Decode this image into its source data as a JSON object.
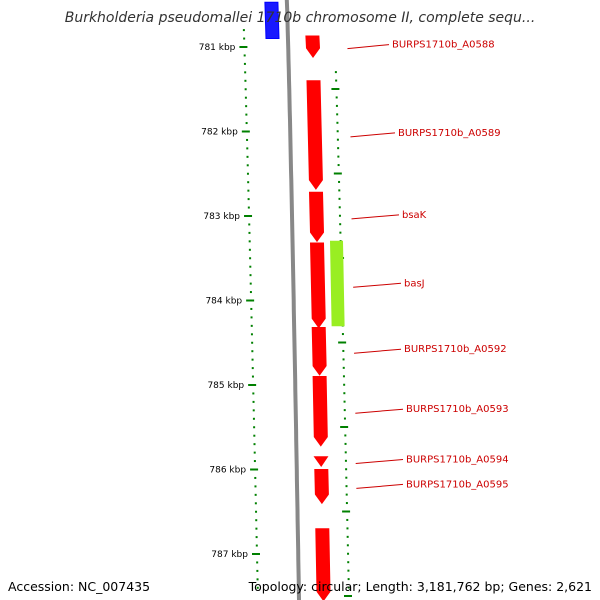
{
  "title": "Burkholderia pseudomallei 1710b chromosome II, complete sequ...",
  "footer": {
    "accession": "Accession: NC_007435",
    "stats": "Topology: circular; Length: 3,181,762 bp; Genes: 2,621"
  },
  "colors": {
    "forward_cds": "#ff0000",
    "reverse_cds": "#99ee22",
    "other_feature": "#0000ff",
    "backbone": "#888888",
    "ticks": "#008000",
    "label": "#cc0000"
  },
  "ticks": [
    {
      "kbp": 781,
      "label": "781 kbp"
    },
    {
      "kbp": 782,
      "label": "782 kbp"
    },
    {
      "kbp": 783,
      "label": "783 kbp"
    },
    {
      "kbp": 784,
      "label": "784 kbp"
    },
    {
      "kbp": 785,
      "label": "785 kbp"
    },
    {
      "kbp": 786,
      "label": "786 kbp"
    },
    {
      "kbp": 787,
      "label": "787 kbp"
    }
  ],
  "features": [
    {
      "type": "other",
      "start": 780.47,
      "end": 780.9
    },
    {
      "type": "forward",
      "start": 780.87,
      "end": 781.12,
      "label": "BURPS1710b_A0588"
    },
    {
      "type": "forward",
      "start": 781.4,
      "end": 782.68,
      "label": "BURPS1710b_A0589"
    },
    {
      "type": "forward",
      "start": 782.72,
      "end": 783.3,
      "label": "bsaK"
    },
    {
      "type": "forward",
      "start": 783.32,
      "end": 784.32,
      "label": "basJ"
    },
    {
      "type": "reverse",
      "start": 783.3,
      "end": 784.3
    },
    {
      "type": "forward",
      "start": 784.32,
      "end": 784.88,
      "label": "BURPS1710b_A0592"
    },
    {
      "type": "forward",
      "start": 784.9,
      "end": 785.72,
      "label": "BURPS1710b_A0593"
    },
    {
      "type": "forward",
      "start": 785.85,
      "end": 785.96,
      "label": "BURPS1710b_A0594"
    },
    {
      "type": "forward",
      "start": 786.0,
      "end": 786.4,
      "label": "BURPS1710b_A0595"
    },
    {
      "type": "forward",
      "start": 786.7,
      "end": 787.55
    }
  ]
}
